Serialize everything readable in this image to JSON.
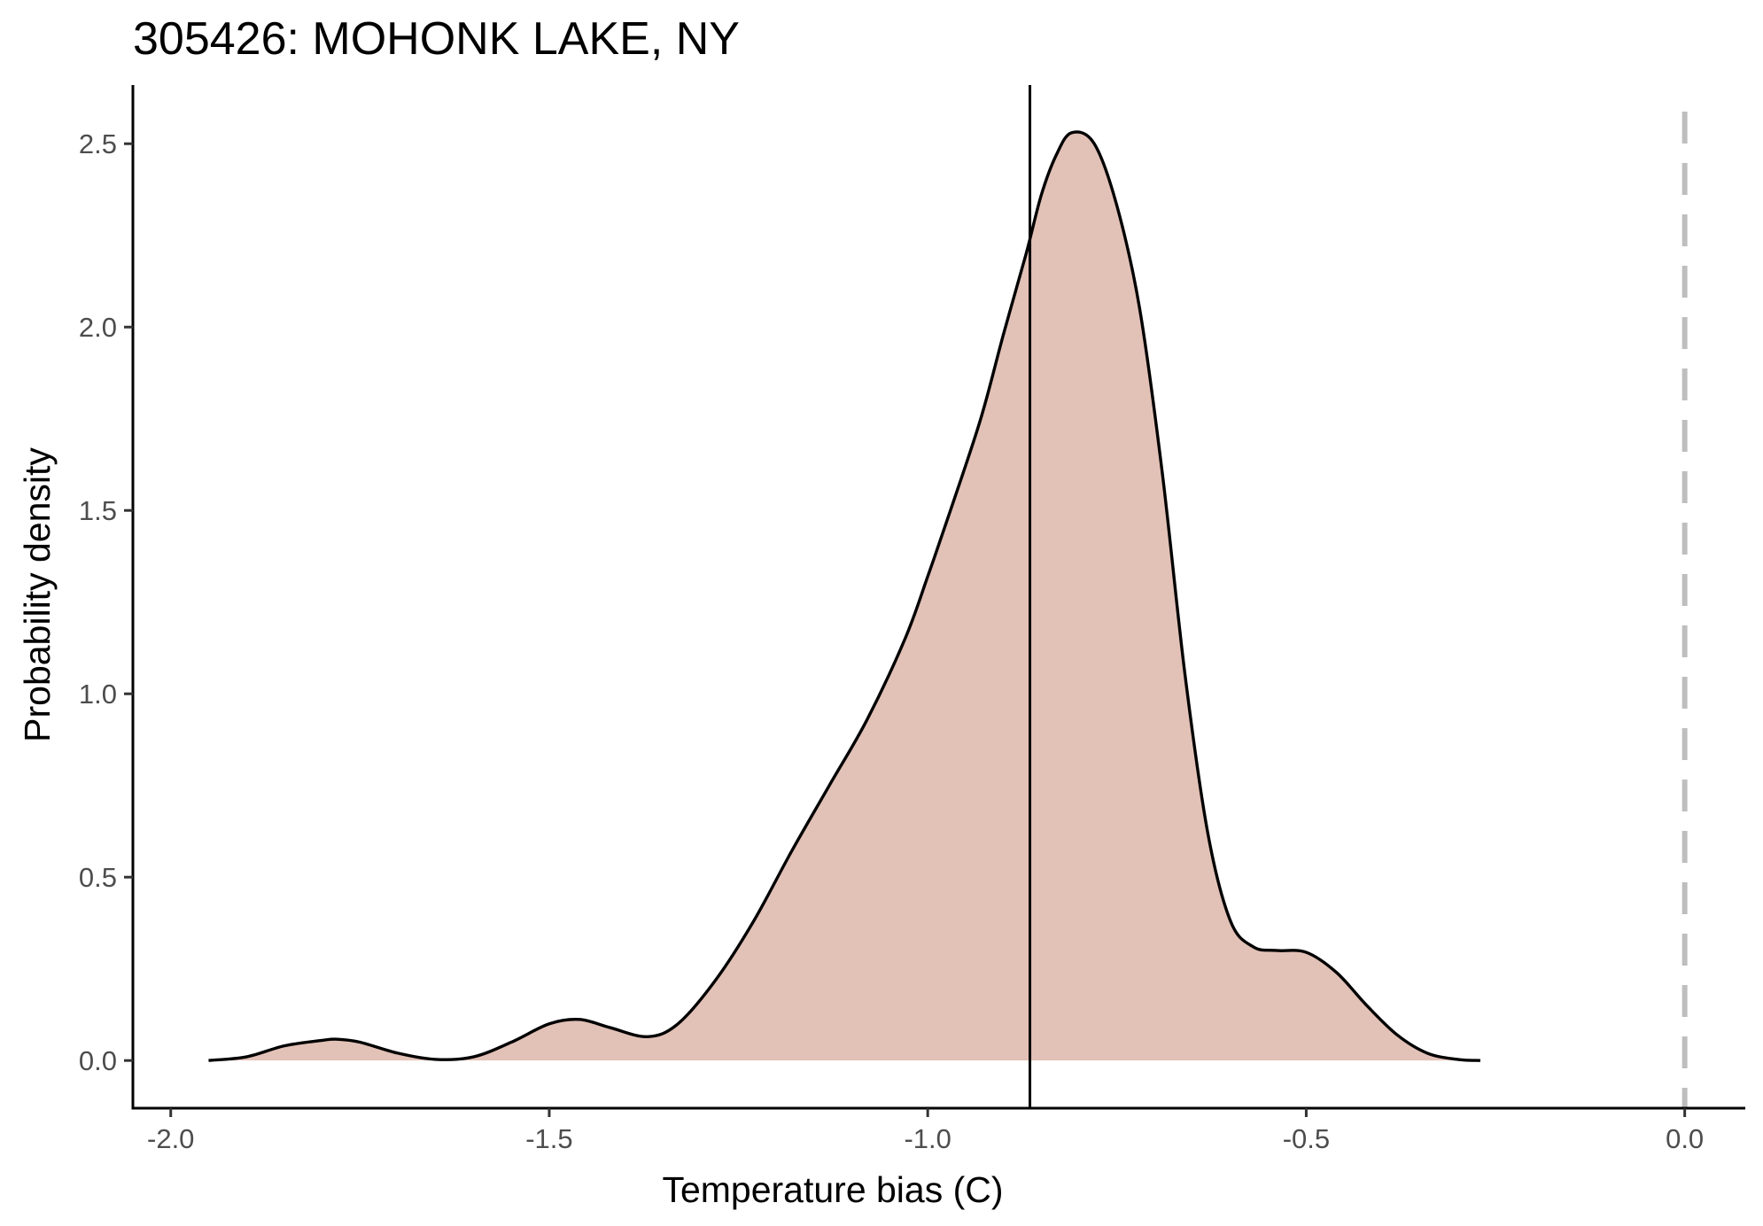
{
  "chart_data": {
    "type": "area",
    "title": "305426: MOHONK LAKE, NY",
    "xlabel": "Temperature bias (C)",
    "ylabel": "Probability density",
    "xlim": [
      -2.05,
      0.08
    ],
    "ylim": [
      -0.13,
      2.66
    ],
    "x_ticks": [
      -2.0,
      -1.5,
      -1.0,
      -0.5,
      0.0
    ],
    "x_tick_labels": [
      "-2.0",
      "-1.5",
      "-1.0",
      "-0.5",
      "0.0"
    ],
    "y_ticks": [
      0.0,
      0.5,
      1.0,
      1.5,
      2.0,
      2.5
    ],
    "y_tick_labels": [
      "0.0",
      "0.5",
      "1.0",
      "1.5",
      "2.0",
      "2.5"
    ],
    "fill_color": "#e2c1b7",
    "line_color": "#000000",
    "grid": false,
    "density": {
      "x": [
        -1.95,
        -1.9,
        -1.85,
        -1.8,
        -1.78,
        -1.75,
        -1.7,
        -1.65,
        -1.6,
        -1.55,
        -1.5,
        -1.46,
        -1.42,
        -1.37,
        -1.33,
        -1.28,
        -1.23,
        -1.18,
        -1.13,
        -1.08,
        -1.03,
        -1.0,
        -0.97,
        -0.93,
        -0.9,
        -0.87,
        -0.85,
        -0.83,
        -0.81,
        -0.78,
        -0.75,
        -0.72,
        -0.69,
        -0.66,
        -0.63,
        -0.6,
        -0.57,
        -0.54,
        -0.5,
        -0.46,
        -0.42,
        -0.38,
        -0.34,
        -0.3,
        -0.27
      ],
      "y": [
        0.0,
        0.01,
        0.04,
        0.055,
        0.058,
        0.05,
        0.02,
        0.003,
        0.01,
        0.05,
        0.1,
        0.112,
        0.09,
        0.065,
        0.1,
        0.22,
        0.38,
        0.57,
        0.75,
        0.93,
        1.15,
        1.32,
        1.5,
        1.75,
        1.98,
        2.2,
        2.36,
        2.47,
        2.53,
        2.5,
        2.33,
        2.05,
        1.6,
        1.05,
        0.62,
        0.38,
        0.31,
        0.3,
        0.295,
        0.24,
        0.15,
        0.07,
        0.02,
        0.003,
        0.0
      ]
    },
    "reference_lines": [
      {
        "axis": "x",
        "value": -0.865,
        "style": "solid",
        "color": "#000000"
      },
      {
        "axis": "x",
        "value": 0.0,
        "style": "dashed",
        "color": "#bebebe"
      }
    ]
  }
}
